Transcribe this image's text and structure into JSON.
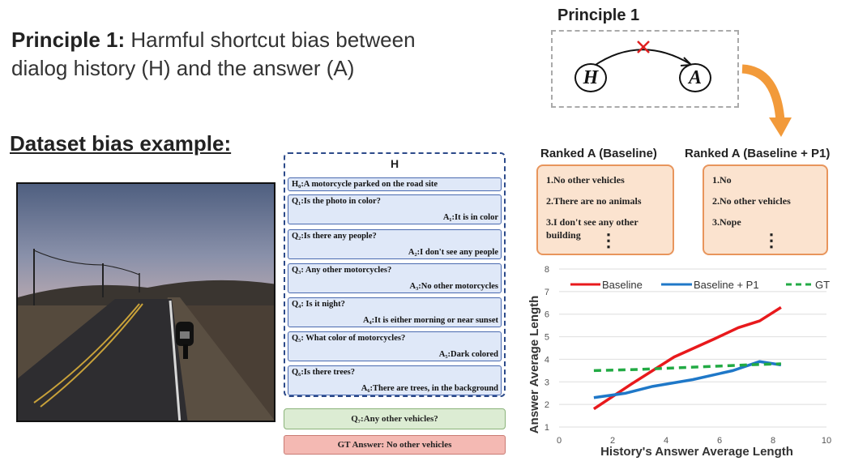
{
  "principle": {
    "bold": "Principle 1:",
    "line1_rest": " Harmful shortcut bias between",
    "line2": "dialog history (H) and the answer (A)"
  },
  "diagram": {
    "title": "Principle 1",
    "node_h": "H",
    "node_a": "A",
    "cross_color": "#e02020",
    "arrow_color": "#f0a030"
  },
  "dataset": {
    "title": "Dataset bias example:"
  },
  "history": {
    "title": "H",
    "h0": "H₀:A motorcycle parked on the road site",
    "rounds": [
      {
        "q": "Q₁:Is the photo in color?",
        "a": "A₁:It is in color"
      },
      {
        "q": "Q₂:Is there any people?",
        "a": "A₂:I don't see any people"
      },
      {
        "q": "Q₃: Any other motorcycles?",
        "a": "A₃:No other motorcycles"
      },
      {
        "q": "Q₄: Is it night?",
        "a": "A₄:It is either morning or near sunset"
      },
      {
        "q": "Q₅: What color of motorcycles?",
        "a": "A₅:Dark colored"
      },
      {
        "q": "Q₆:Is there trees?",
        "a": "A₆:There are trees, in the background"
      }
    ],
    "q7": "Q₇:Any other vehicles?",
    "gt_answer": "GT Answer: No other vehicles"
  },
  "ranked": {
    "baseline": {
      "title": "Ranked A (Baseline)",
      "items": [
        "1.No other vehicles",
        "2.There are no animals",
        "3.I don't see any other",
        "building"
      ]
    },
    "p1": {
      "title": "Ranked A (Baseline + P1)",
      "items": [
        "1.No",
        "2.No other vehicles",
        "3.Nope"
      ]
    },
    "dots": "⋮"
  },
  "chart_data": {
    "type": "line",
    "xlabel": "History's Answer Average Length",
    "ylabel": "Answer Average Length",
    "xlim": [
      0,
      10
    ],
    "ylim": [
      1,
      8
    ],
    "xticks": [
      0,
      2,
      4,
      6,
      8,
      10
    ],
    "yticks": [
      1,
      2,
      3,
      4,
      5,
      6,
      7,
      8
    ],
    "grid": "horizontal",
    "legend": "top",
    "series": [
      {
        "name": "Baseline",
        "color": "#e8191c",
        "style": "solid",
        "x": [
          1.3,
          2.7,
          4.3,
          5.8,
          6.7,
          7.5,
          8.3
        ],
        "y": [
          1.8,
          2.9,
          4.1,
          4.9,
          5.4,
          5.7,
          6.3
        ]
      },
      {
        "name": "Baseline + P1",
        "color": "#1f78c8",
        "style": "solid",
        "x": [
          1.3,
          2.5,
          3.5,
          5.0,
          6.5,
          7.5,
          8.3
        ],
        "y": [
          2.3,
          2.5,
          2.8,
          3.1,
          3.5,
          3.9,
          3.75
        ]
      },
      {
        "name": "GT",
        "color": "#22aa44",
        "style": "dashed",
        "x": [
          1.3,
          3.0,
          5.0,
          7.0,
          8.3
        ],
        "y": [
          3.5,
          3.55,
          3.65,
          3.75,
          3.8
        ]
      }
    ]
  }
}
